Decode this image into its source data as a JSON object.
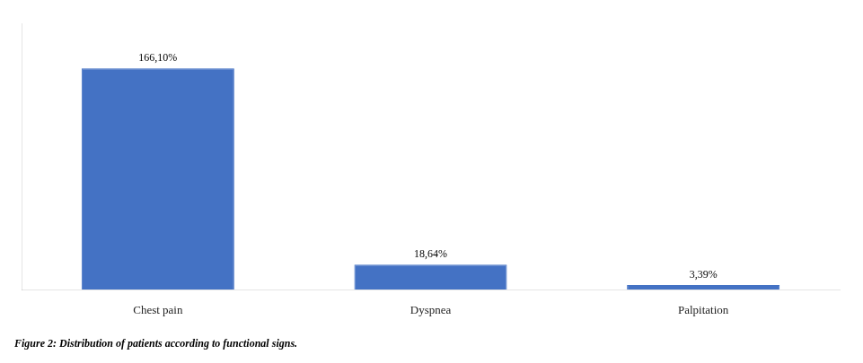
{
  "chart_data": {
    "type": "bar",
    "title": "Figure 2: Distribution of patients according to functional signs.",
    "categories": [
      "Chest pain",
      "Dyspnea",
      "Palpitation"
    ],
    "values": [
      166.1,
      18.64,
      3.39
    ],
    "value_labels": [
      "166,10%",
      "18,64%",
      "3,39%"
    ],
    "data_labels": true,
    "color": "#4472c4",
    "ylim": [
      0,
      200
    ],
    "grid": false,
    "tick_labels": "x"
  }
}
